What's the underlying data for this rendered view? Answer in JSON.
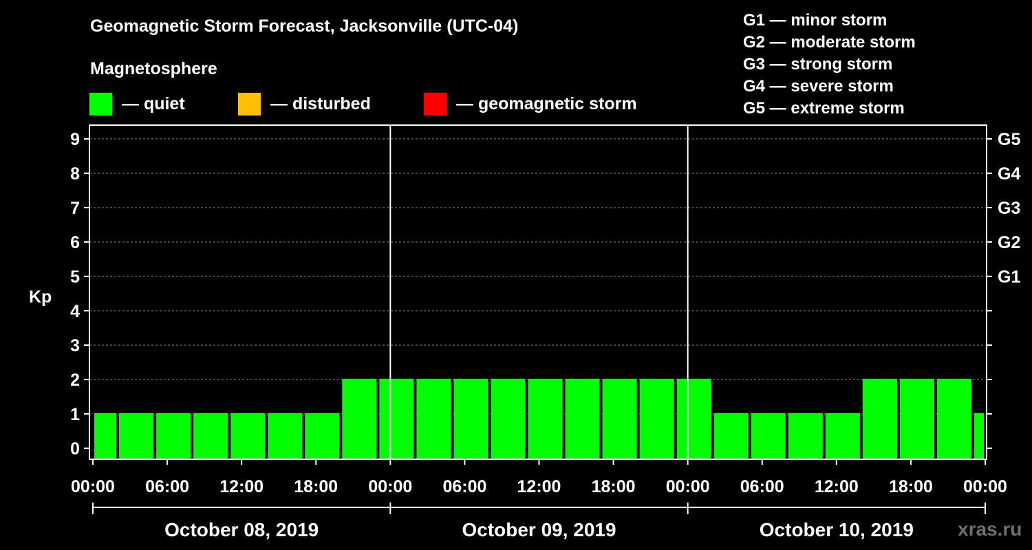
{
  "header": {
    "title": "Geomagnetic Storm Forecast, Jacksonville (UTC-04)",
    "magnetosphere_title": "Magnetosphere"
  },
  "legend": {
    "items": [
      {
        "label": "— quiet",
        "color": "#00ff00"
      },
      {
        "label": "— disturbed",
        "color": "#ffbf00"
      },
      {
        "label": "— geomagnetic storm",
        "color": "#ff0000"
      }
    ]
  },
  "g_scale": {
    "items": [
      "G1 — minor storm",
      "G2 — moderate storm",
      "G3 — strong storm",
      "G4 — severe storm",
      "G5 — extreme storm"
    ]
  },
  "watermark": "xras.ru",
  "chart_data": {
    "type": "bar",
    "title": "Geomagnetic Storm Forecast, Jacksonville (UTC-04)",
    "ylabel": "Kp",
    "xlabel": "",
    "ylim": [
      0,
      9
    ],
    "yticks": [
      "0",
      "1",
      "2",
      "3",
      "4",
      "5",
      "6",
      "7",
      "8",
      "9"
    ],
    "right_axis_labels": [
      {
        "kp": 5,
        "label": "G1"
      },
      {
        "kp": 6,
        "label": "G2"
      },
      {
        "kp": 7,
        "label": "G3"
      },
      {
        "kp": 8,
        "label": "G4"
      },
      {
        "kp": 9,
        "label": "G5"
      }
    ],
    "grid": true,
    "bar_color": "#00ff00",
    "x_range_hours": [
      0,
      72
    ],
    "xtick_labels": [
      "00:00",
      "06:00",
      "12:00",
      "18:00",
      "00:00",
      "06:00",
      "12:00",
      "18:00",
      "00:00",
      "06:00",
      "12:00",
      "18:00",
      "00:00"
    ],
    "days": [
      "October 08, 2019",
      "October 09, 2019",
      "October 10, 2019"
    ],
    "bars": [
      {
        "start": 0,
        "end": 2,
        "value": 1
      },
      {
        "start": 2,
        "end": 5,
        "value": 1
      },
      {
        "start": 5,
        "end": 8,
        "value": 1
      },
      {
        "start": 8,
        "end": 11,
        "value": 1
      },
      {
        "start": 11,
        "end": 14,
        "value": 1
      },
      {
        "start": 14,
        "end": 17,
        "value": 1
      },
      {
        "start": 17,
        "end": 20,
        "value": 1
      },
      {
        "start": 20,
        "end": 23,
        "value": 2
      },
      {
        "start": 23,
        "end": 26,
        "value": 2
      },
      {
        "start": 26,
        "end": 29,
        "value": 2
      },
      {
        "start": 29,
        "end": 32,
        "value": 2
      },
      {
        "start": 32,
        "end": 35,
        "value": 2
      },
      {
        "start": 35,
        "end": 38,
        "value": 2
      },
      {
        "start": 38,
        "end": 41,
        "value": 2
      },
      {
        "start": 41,
        "end": 44,
        "value": 2
      },
      {
        "start": 44,
        "end": 47,
        "value": 2
      },
      {
        "start": 47,
        "end": 50,
        "value": 2
      },
      {
        "start": 50,
        "end": 53,
        "value": 1
      },
      {
        "start": 53,
        "end": 56,
        "value": 1
      },
      {
        "start": 56,
        "end": 59,
        "value": 1
      },
      {
        "start": 59,
        "end": 62,
        "value": 1
      },
      {
        "start": 62,
        "end": 65,
        "value": 2
      },
      {
        "start": 65,
        "end": 68,
        "value": 2
      },
      {
        "start": 68,
        "end": 71,
        "value": 2
      },
      {
        "start": 71,
        "end": 72,
        "value": 1
      }
    ]
  }
}
